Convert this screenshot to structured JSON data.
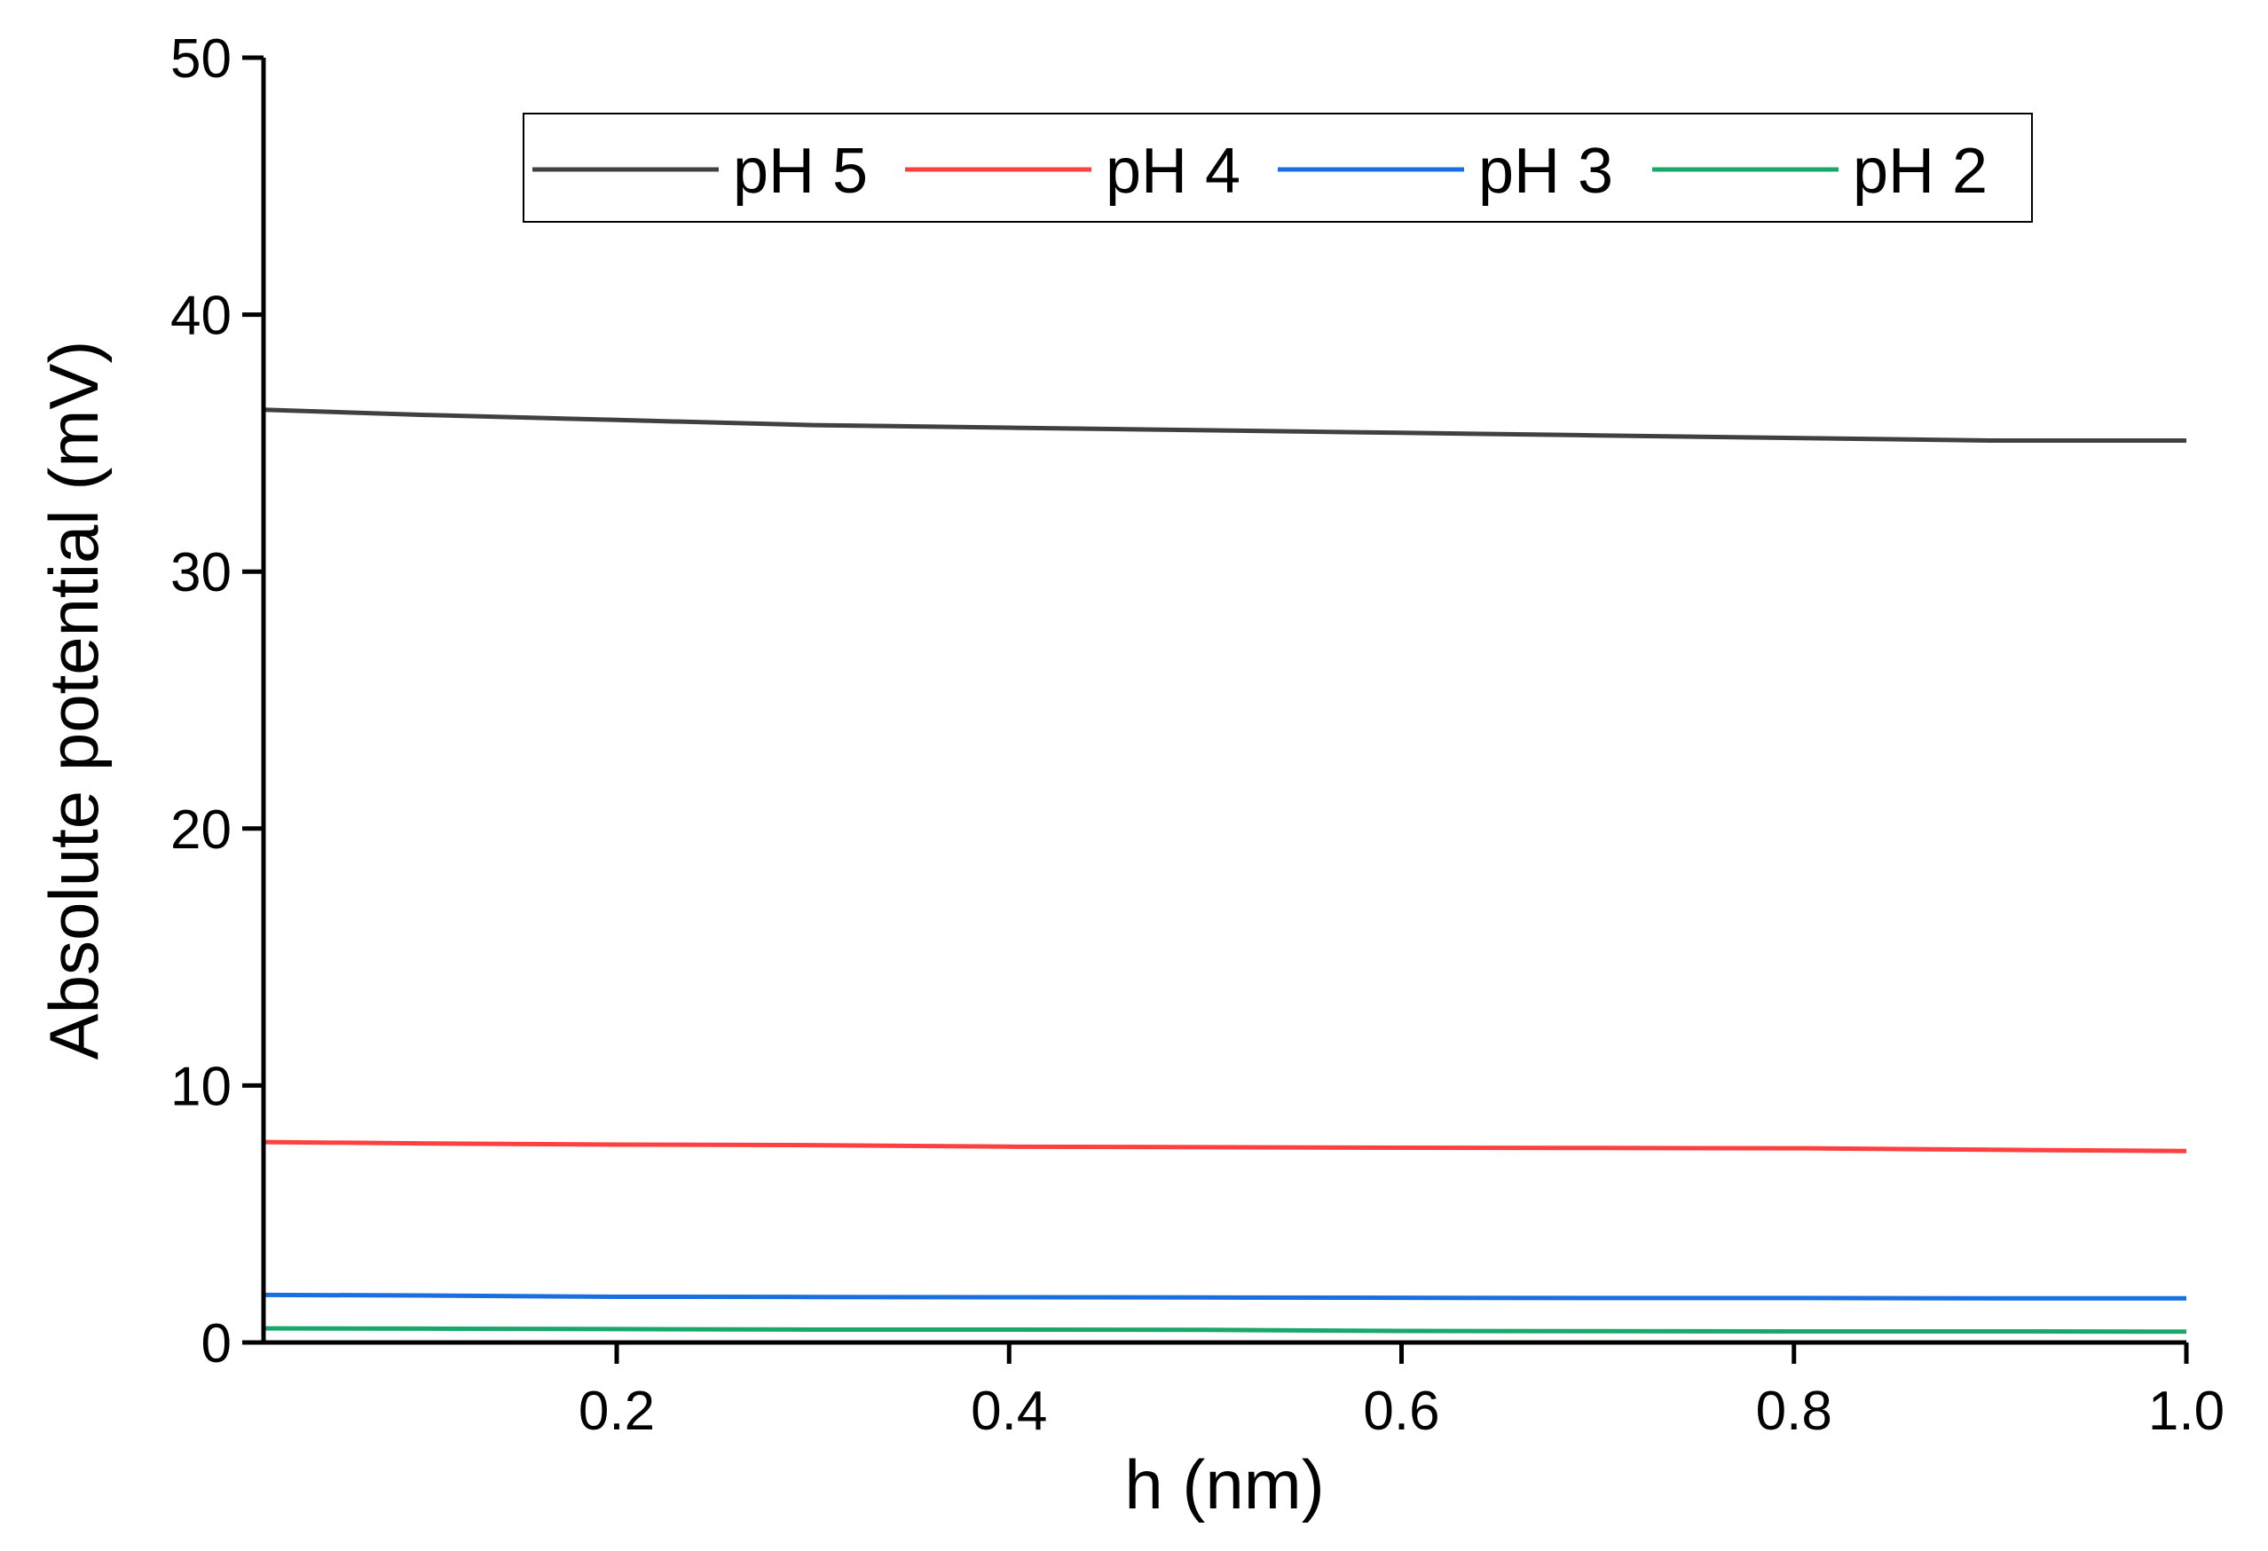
{
  "chart_data": {
    "type": "line",
    "title": "",
    "xlabel": "h (nm)",
    "ylabel": "Absolute potential (mV)",
    "xlim": [
      0.02,
      1.0
    ],
    "ylim": [
      0,
      50
    ],
    "xticks": [
      0.2,
      0.4,
      0.6,
      0.8,
      1.0
    ],
    "xtick_labels": [
      "0.2",
      "0.4",
      "0.6",
      "0.8",
      "1.0"
    ],
    "yticks": [
      0,
      10,
      20,
      30,
      40,
      50
    ],
    "ytick_labels": [
      "0",
      "10",
      "20",
      "30",
      "40",
      "50"
    ],
    "legend_position": "top-center",
    "series": [
      {
        "name": "pH 5",
        "color": "#404040",
        "x": [
          0.02,
          0.1,
          0.2,
          0.3,
          0.4,
          0.5,
          0.6,
          0.7,
          0.8,
          0.9,
          1.0
        ],
        "values": [
          36.3,
          36.1,
          35.9,
          35.7,
          35.6,
          35.5,
          35.4,
          35.3,
          35.2,
          35.1,
          35.1
        ]
      },
      {
        "name": "pH 4",
        "color": "#ff4040",
        "x": [
          0.02,
          0.1,
          0.2,
          0.3,
          0.4,
          0.5,
          0.6,
          0.7,
          0.8,
          0.9,
          1.0
        ],
        "values": [
          7.8,
          7.75,
          7.7,
          7.68,
          7.62,
          7.6,
          7.58,
          7.57,
          7.56,
          7.5,
          7.45
        ]
      },
      {
        "name": "pH 3",
        "color": "#1a6fe0",
        "x": [
          0.02,
          0.1,
          0.2,
          0.3,
          0.4,
          0.5,
          0.6,
          0.7,
          0.8,
          0.9,
          1.0
        ],
        "values": [
          1.85,
          1.83,
          1.78,
          1.77,
          1.76,
          1.75,
          1.74,
          1.73,
          1.73,
          1.72,
          1.72
        ]
      },
      {
        "name": "pH 2",
        "color": "#1aa86a",
        "x": [
          0.02,
          0.1,
          0.2,
          0.3,
          0.4,
          0.5,
          0.6,
          0.7,
          0.8,
          0.9,
          1.0
        ],
        "values": [
          0.55,
          0.54,
          0.52,
          0.5,
          0.5,
          0.49,
          0.45,
          0.44,
          0.43,
          0.43,
          0.42
        ]
      }
    ]
  }
}
